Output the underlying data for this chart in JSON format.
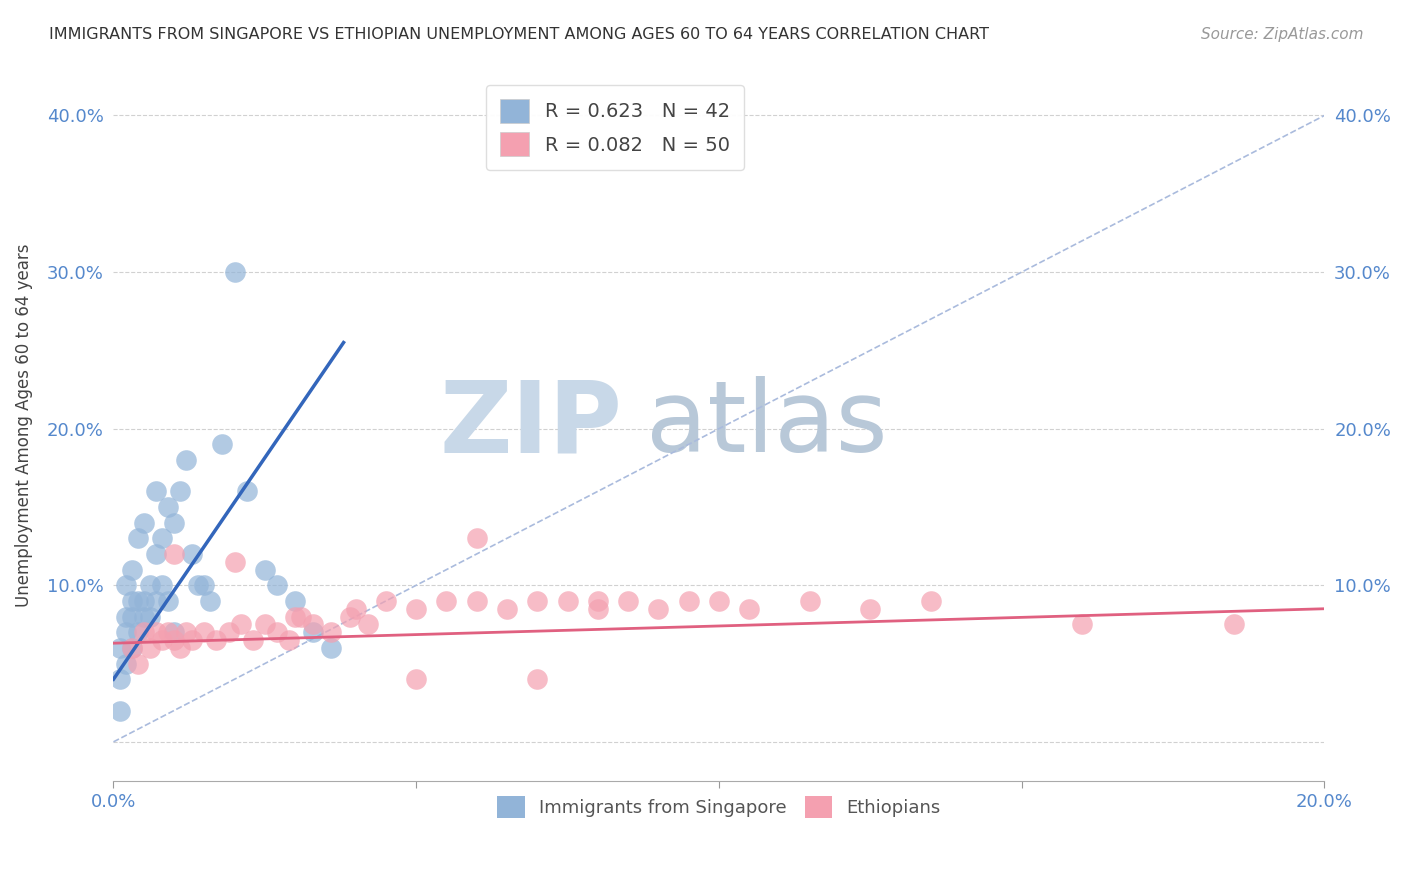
{
  "title": "IMMIGRANTS FROM SINGAPORE VS ETHIOPIAN UNEMPLOYMENT AMONG AGES 60 TO 64 YEARS CORRELATION CHART",
  "source": "Source: ZipAtlas.com",
  "ylabel": "Unemployment Among Ages 60 to 64 years",
  "xlim": [
    0.0,
    0.2
  ],
  "ylim": [
    -0.025,
    0.43
  ],
  "yticks": [
    0.0,
    0.1,
    0.2,
    0.3,
    0.4
  ],
  "ytick_labels": [
    "",
    "10.0%",
    "20.0%",
    "30.0%",
    "40.0%"
  ],
  "xticks": [
    0.0,
    0.05,
    0.1,
    0.15,
    0.2
  ],
  "xtick_labels": [
    "0.0%",
    "",
    "",
    "",
    "20.0%"
  ],
  "blue_R": 0.623,
  "blue_N": 42,
  "pink_R": 0.082,
  "pink_N": 50,
  "blue_color": "#92B4D8",
  "pink_color": "#F4A0B0",
  "blue_line_color": "#3366BB",
  "pink_line_color": "#E06080",
  "dashed_line_color": "#AABBDD",
  "watermark_zip_color": "#C8D8E8",
  "watermark_atlas_color": "#B8C8D8",
  "blue_scatter_x": [
    0.001,
    0.001,
    0.001,
    0.002,
    0.002,
    0.002,
    0.002,
    0.003,
    0.003,
    0.003,
    0.003,
    0.004,
    0.004,
    0.004,
    0.005,
    0.005,
    0.005,
    0.006,
    0.006,
    0.007,
    0.007,
    0.007,
    0.008,
    0.008,
    0.009,
    0.009,
    0.01,
    0.01,
    0.011,
    0.012,
    0.013,
    0.014,
    0.015,
    0.016,
    0.018,
    0.02,
    0.022,
    0.025,
    0.027,
    0.03,
    0.033,
    0.036
  ],
  "blue_scatter_y": [
    0.02,
    0.04,
    0.06,
    0.05,
    0.07,
    0.08,
    0.1,
    0.06,
    0.08,
    0.09,
    0.11,
    0.07,
    0.09,
    0.13,
    0.08,
    0.09,
    0.14,
    0.08,
    0.1,
    0.09,
    0.12,
    0.16,
    0.1,
    0.13,
    0.09,
    0.15,
    0.07,
    0.14,
    0.16,
    0.18,
    0.12,
    0.1,
    0.1,
    0.09,
    0.19,
    0.3,
    0.16,
    0.11,
    0.1,
    0.09,
    0.07,
    0.06
  ],
  "pink_scatter_x": [
    0.003,
    0.004,
    0.005,
    0.006,
    0.007,
    0.008,
    0.009,
    0.01,
    0.011,
    0.012,
    0.013,
    0.015,
    0.017,
    0.019,
    0.021,
    0.023,
    0.025,
    0.027,
    0.029,
    0.031,
    0.033,
    0.036,
    0.039,
    0.042,
    0.045,
    0.05,
    0.055,
    0.06,
    0.065,
    0.07,
    0.075,
    0.08,
    0.085,
    0.09,
    0.095,
    0.1,
    0.105,
    0.115,
    0.125,
    0.135,
    0.01,
    0.02,
    0.03,
    0.04,
    0.05,
    0.06,
    0.07,
    0.08,
    0.16,
    0.185
  ],
  "pink_scatter_y": [
    0.06,
    0.05,
    0.07,
    0.06,
    0.07,
    0.065,
    0.07,
    0.065,
    0.06,
    0.07,
    0.065,
    0.07,
    0.065,
    0.07,
    0.075,
    0.065,
    0.075,
    0.07,
    0.065,
    0.08,
    0.075,
    0.07,
    0.08,
    0.075,
    0.09,
    0.085,
    0.09,
    0.09,
    0.085,
    0.09,
    0.09,
    0.085,
    0.09,
    0.085,
    0.09,
    0.09,
    0.085,
    0.09,
    0.085,
    0.09,
    0.12,
    0.115,
    0.08,
    0.085,
    0.04,
    0.13,
    0.04,
    0.09,
    0.075,
    0.075
  ],
  "blue_line_x": [
    0.0,
    0.038
  ],
  "blue_line_y": [
    0.04,
    0.255
  ],
  "pink_line_x": [
    0.0,
    0.2
  ],
  "pink_line_y": [
    0.063,
    0.085
  ],
  "dash_line_x": [
    0.0,
    0.2
  ],
  "dash_line_y": [
    0.0,
    0.4
  ]
}
